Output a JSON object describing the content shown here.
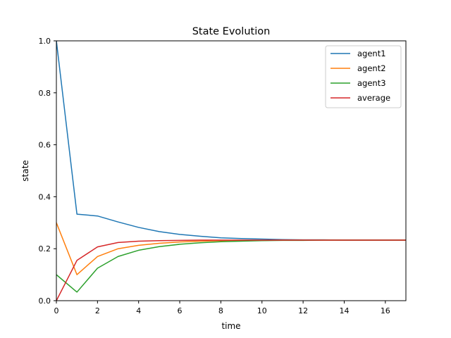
{
  "chart_data": {
    "type": "line",
    "title": "State Evolution",
    "xlabel": "time",
    "ylabel": "state",
    "xlim": [
      0,
      17
    ],
    "ylim": [
      0,
      1.0
    ],
    "xticks": [
      0,
      2,
      4,
      6,
      8,
      10,
      12,
      14,
      16
    ],
    "yticks": [
      0.0,
      0.2,
      0.4,
      0.6,
      0.8,
      1.0
    ],
    "xtick_labels": [
      "0",
      "2",
      "4",
      "6",
      "8",
      "10",
      "12",
      "14",
      "16"
    ],
    "ytick_labels": [
      "0.0",
      "0.2",
      "0.4",
      "0.6",
      "0.8",
      "1.0"
    ],
    "grid": false,
    "legend_position": "top-right",
    "x": [
      0,
      1,
      2,
      3,
      4,
      5,
      6,
      7,
      8,
      9,
      10,
      11,
      12,
      13,
      14,
      15,
      16,
      17
    ],
    "series": [
      {
        "name": "agent1",
        "color": "#1f77b4",
        "values": [
          1.0,
          0.333,
          0.326,
          0.303,
          0.282,
          0.266,
          0.255,
          0.248,
          0.242,
          0.239,
          0.237,
          0.235,
          0.234,
          0.234,
          0.233,
          0.233,
          0.233,
          0.233
        ]
      },
      {
        "name": "agent2",
        "color": "#ff7f0e",
        "values": [
          0.3,
          0.1,
          0.17,
          0.2,
          0.213,
          0.221,
          0.226,
          0.229,
          0.231,
          0.232,
          0.232,
          0.233,
          0.233,
          0.233,
          0.233,
          0.233,
          0.233,
          0.233
        ]
      },
      {
        "name": "agent3",
        "color": "#2ca02c",
        "values": [
          0.1,
          0.033,
          0.125,
          0.17,
          0.194,
          0.208,
          0.217,
          0.223,
          0.227,
          0.229,
          0.231,
          0.232,
          0.232,
          0.233,
          0.233,
          0.233,
          0.233,
          0.233
        ]
      },
      {
        "name": "average",
        "color": "#d62728",
        "values": [
          0.0,
          0.155,
          0.207,
          0.224,
          0.229,
          0.231,
          0.232,
          0.233,
          0.233,
          0.233,
          0.233,
          0.233,
          0.233,
          0.233,
          0.233,
          0.233,
          0.233,
          0.233
        ]
      }
    ]
  }
}
